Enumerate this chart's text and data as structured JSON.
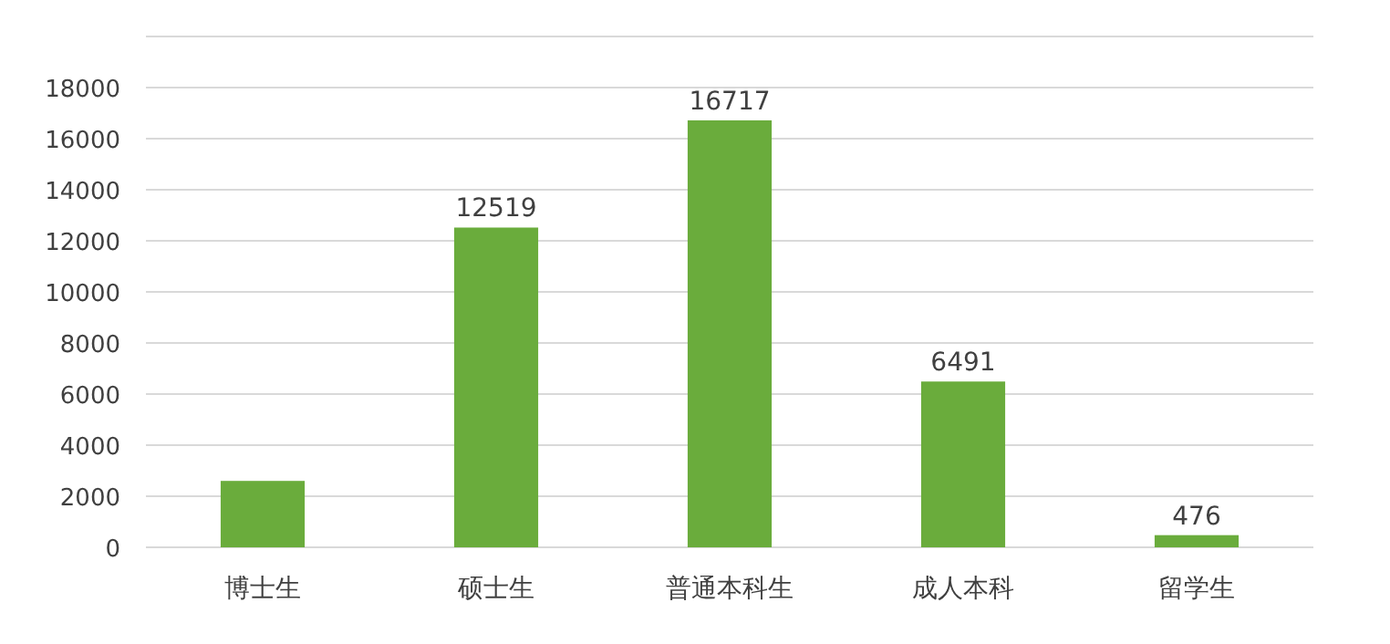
{
  "chart_data": {
    "type": "bar",
    "categories": [
      "博士生",
      "硕士生",
      "普通本科生",
      "成人本科",
      "留学生"
    ],
    "values": [
      2600,
      12519,
      16717,
      6491,
      476
    ],
    "value_labels": [
      null,
      "12519",
      "16717",
      "6491",
      "476"
    ],
    "color": "#6aac3c",
    "ylim": [
      0,
      20000
    ],
    "yticks": [
      0,
      2000,
      4000,
      6000,
      8000,
      10000,
      12000,
      14000,
      16000,
      18000,
      {
        "value": 20000,
        "label": null
      }
    ],
    "grid": "y"
  }
}
